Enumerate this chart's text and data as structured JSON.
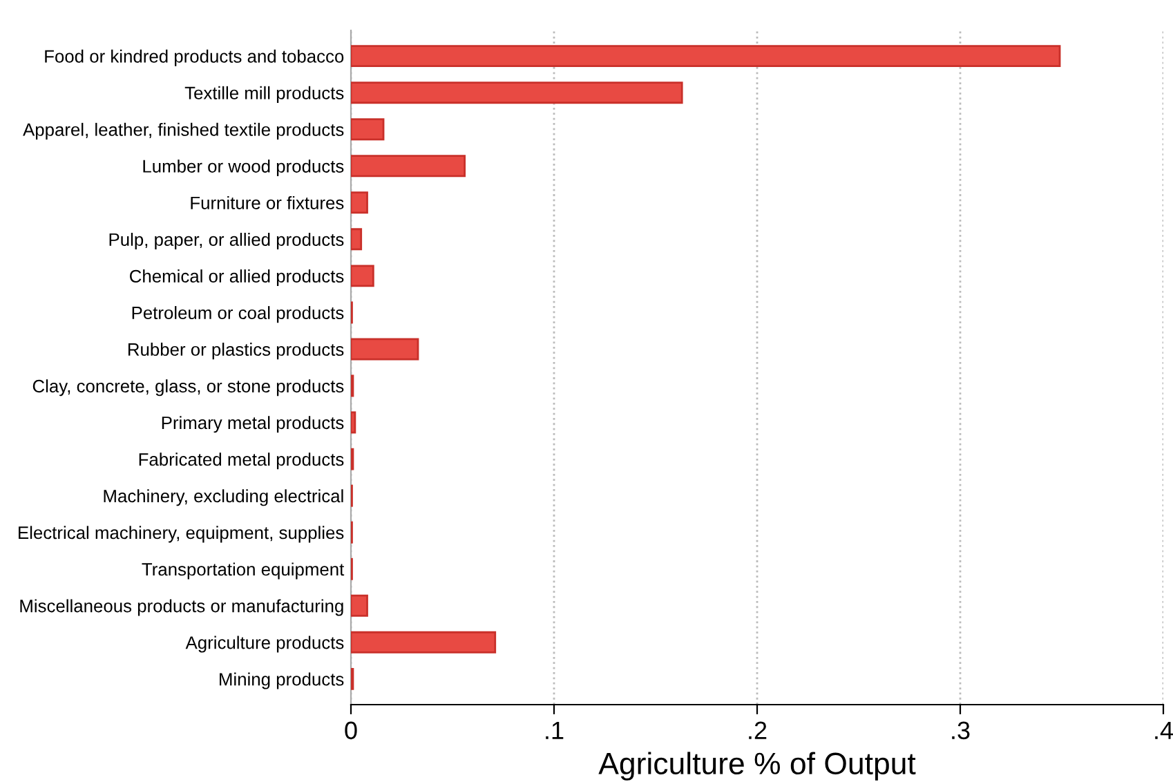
{
  "chart_data": {
    "type": "bar",
    "orientation": "horizontal",
    "xlabel": "Agriculture % of Output",
    "categories": [
      "Food or kindred products and tobacco",
      "Textille mill products",
      "Apparel, leather, finished textile products",
      "Lumber or wood products",
      "Furniture or fixtures",
      "Pulp, paper, or allied products",
      "Chemical or allied products",
      "Petroleum or coal products",
      "Rubber or plastics products",
      "Clay, concrete, glass, or stone products",
      "Primary metal products",
      "Fabricated metal products",
      "Machinery, excluding electrical",
      "Electrical machinery, equipment, supplies",
      "Transportation equipment",
      "Miscellaneous products or manufacturing",
      "Agriculture products",
      "Mining products"
    ],
    "values": [
      0.349,
      0.163,
      0.016,
      0.056,
      0.008,
      0.005,
      0.011,
      0.0005,
      0.033,
      0.001,
      0.002,
      0.001,
      0.0005,
      0.0005,
      0.0005,
      0.008,
      0.071,
      0.001
    ],
    "color": "#e84a43",
    "xlim": [
      0,
      0.4
    ],
    "xticks": [
      0,
      {
        "value": 0.1,
        "label": ".1"
      },
      {
        "value": 0.2,
        "label": ".2"
      },
      {
        "value": 0.3,
        "label": ".3"
      },
      {
        "value": 0.4,
        "label": ".4"
      }
    ],
    "grid": "x"
  }
}
